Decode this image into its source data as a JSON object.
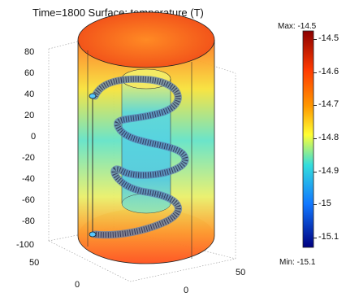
{
  "plot": {
    "title": "Time=1800  Surface: temperature (T)",
    "y_axis_ticks": [
      "80",
      "60",
      "40",
      "20",
      "0",
      "-20",
      "-40",
      "-60",
      "-80",
      "-100"
    ],
    "front_axis_ticks": [
      "50",
      "0"
    ],
    "right_axis_ticks": [
      "50",
      "0"
    ]
  },
  "colorbar": {
    "max_label": "Max: -14.5",
    "min_label": "Min: -15.1",
    "ticks": [
      "-14.5",
      "-14.6",
      "-14.7",
      "-14.8",
      "-14.9",
      "-15",
      "-15.1"
    ],
    "colors": {
      "high": "#8b0000",
      "mid_high": "#ff7a00",
      "mid": "#ffff33",
      "mid_low": "#33dddd",
      "low": "#0022aa"
    }
  }
}
